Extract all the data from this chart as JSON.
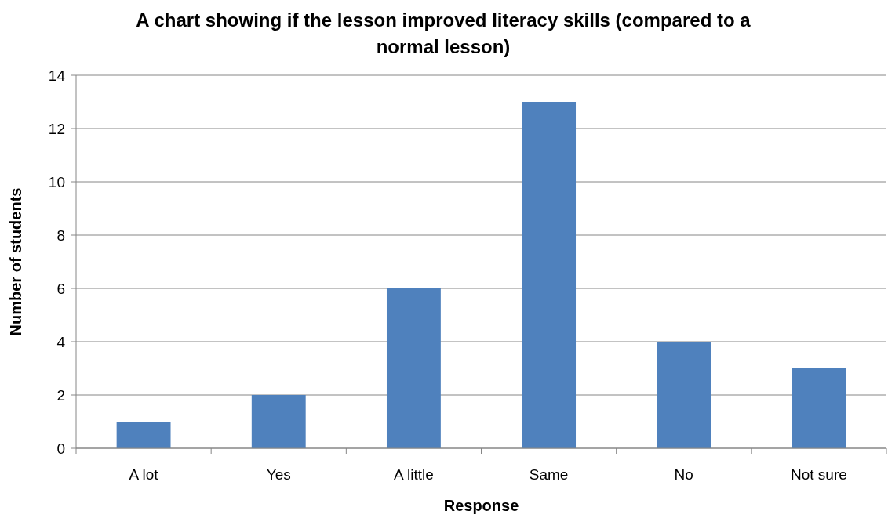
{
  "chart_data": {
    "type": "bar",
    "title": "A chart showing if the lesson improved literacy skills (compared to a normal lesson)",
    "xlabel": "Response",
    "ylabel": "Number of students",
    "categories": [
      "A lot",
      "Yes",
      "A little",
      "Same",
      "No",
      "Not sure"
    ],
    "values": [
      1,
      2,
      6,
      13,
      4,
      3
    ],
    "color": "#4f81bd",
    "ylim": [
      0,
      14
    ],
    "yticks": [
      0,
      2,
      4,
      6,
      8,
      10,
      12,
      14
    ],
    "grid": "y"
  }
}
